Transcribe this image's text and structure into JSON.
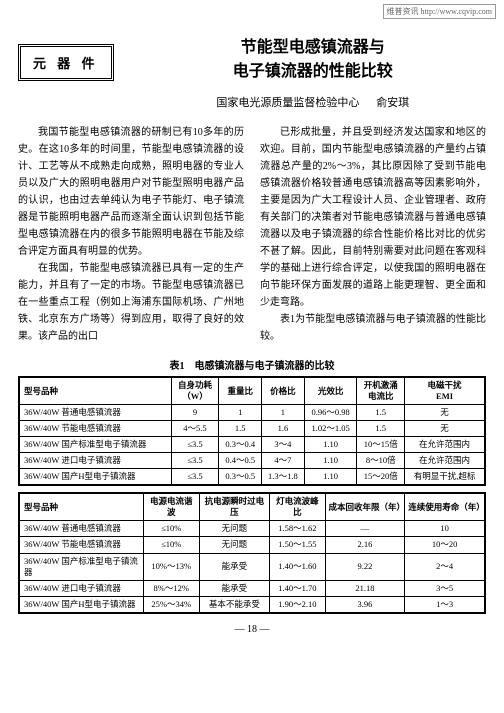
{
  "watermark": "维普资讯 http://www.cqvip.com",
  "section_label": "元 器 件",
  "title_line1": "节能型电感镇流器与",
  "title_line2": "电子镇流器的性能比较",
  "institution": "国家电光源质量监督检验中心",
  "author": "俞安琪",
  "para1": "我国节能型电感镇流器的研制已有10多年的历史。在这10多年的时间里，节能型电感镇流器的设计、工艺等从不成熟走向成熟，照明电器的专业人员以及广大的照明电器用户对节能型照明电器产品的认识，也由过去单纯认为电子节能灯、电子镇流器是节能照明电器产品而逐渐全面认识到包括节能型电感镇流器在内的很多节能照明电器在节能及综合评定方面具有明显的优势。",
  "para2": "在我国，节能型电感镇流器已具有一定的生产能力，并且有了一定的市场。节能型电感镇流器已在一些重点工程（例如上海浦东国际机场、广州地铁、北京东方广场等）得到应用，取得了良好的效果。该产品的出口",
  "para3": "已形成批量，并且受到经济发达国家和地区的欢迎。目前，国内节能型电感镇流器的产量约占镇流器总产量的2%～3%，其比原因除了受到节能电感镇流器价格较普通电感镇流器高等因素影响外，主要是因为广大工程设计人员、企业管理者、政府有关部门的决策者对节能电感镇流器与普通电感镇流器以及电子镇流器的综合性能价格比对比的优劣不甚了解。因此，目前特别需要对此问题在客观科学的基础上进行综合评定，以使我国的照明电器在向节能环保方面发展的道路上能更理智、更全面和少走弯路。",
  "para4": "表1为节能型电感镇流器与电子镇流器的性能比较。",
  "table_caption": "表1　电感镇流器与电子镇流器的比较",
  "table1": {
    "headers": [
      "型号品种",
      "自身功耗\n（W）",
      "重量比",
      "价格比",
      "光效比",
      "开机激涌\n电流比",
      "电磁干扰\nEMI"
    ],
    "rows": [
      [
        "36W/40W 普通电感镇流器",
        "9",
        "1",
        "1",
        "0.96～0.98",
        "1.5",
        "无"
      ],
      [
        "36W/40W 节能电感镇流器",
        "4～5.5",
        "1.5",
        "1.6",
        "1.02～1.05",
        "1.5",
        "无"
      ],
      [
        "36W/40W 国产标准型电子镇流器",
        "≤3.5",
        "0.3～0.4",
        "3～4",
        "1.10",
        "10～15倍",
        "在允许范围内"
      ],
      [
        "36W/40W 进口电子镇流器",
        "≤3.5",
        "0.4～0.5",
        "4～7",
        "1.10",
        "8～10倍",
        "在允许范围内"
      ],
      [
        "36W/40W 国产H型电子镇流器",
        "≤3.5",
        "0.3～0.5",
        "1.3～1.8",
        "1.10",
        "15～20倍",
        "有明显干扰,超标"
      ]
    ]
  },
  "table2": {
    "headers": [
      "型号品种",
      "电源电流谐波",
      "抗电源瞬时过电压",
      "灯电流波峰比",
      "成本回收年限（年）",
      "连续使用寿命（年）"
    ],
    "rows": [
      [
        "36W/40W 普通电感镇流器",
        "≤10%",
        "无问题",
        "1.58～1.62",
        "—",
        "10"
      ],
      [
        "36W/40W 节能电感镇流器",
        "≤10%",
        "无问题",
        "1.50～1.55",
        "2.16",
        "10～20"
      ],
      [
        "36W/40W 国产标准型电子镇流器",
        "10%～13%",
        "能承受",
        "1.40～1.60",
        "9.22",
        "2～4"
      ],
      [
        "36W/40W 进口电子镇流器",
        "8%～12%",
        "能承受",
        "1.40～1.70",
        "21.18",
        "3～5"
      ],
      [
        "36W/40W 国产H型电子镇流器",
        "25%～34%",
        "基本不能承受",
        "1.90～2.10",
        "3.96",
        "1～3"
      ]
    ]
  },
  "page_number": "— 18 —"
}
